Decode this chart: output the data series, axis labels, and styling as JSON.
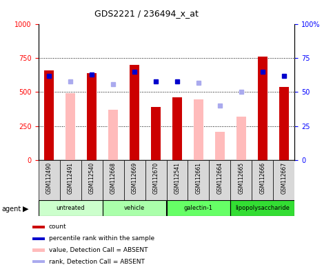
{
  "title": "GDS2221 / 236494_x_at",
  "samples": [
    "GSM112490",
    "GSM112491",
    "GSM112540",
    "GSM112668",
    "GSM112669",
    "GSM112670",
    "GSM112541",
    "GSM112661",
    "GSM112664",
    "GSM112665",
    "GSM112666",
    "GSM112667"
  ],
  "count_values": [
    660,
    null,
    640,
    null,
    700,
    390,
    460,
    null,
    null,
    null,
    760,
    540
  ],
  "absent_value_bars": [
    null,
    490,
    null,
    370,
    null,
    null,
    null,
    445,
    210,
    320,
    null,
    null
  ],
  "percentile_rank_present": [
    62,
    null,
    63,
    null,
    65,
    58,
    58,
    null,
    null,
    null,
    65,
    62
  ],
  "rank_absent": [
    null,
    58,
    null,
    56,
    null,
    null,
    null,
    57,
    40,
    50,
    null,
    null
  ],
  "ylim_left": [
    0,
    1000
  ],
  "ylim_right": [
    0,
    100
  ],
  "yticks_left": [
    0,
    250,
    500,
    750,
    1000
  ],
  "yticks_right": [
    0,
    25,
    50,
    75,
    100
  ],
  "count_color": "#cc0000",
  "absent_value_color": "#ffbbbb",
  "rank_present_color": "#0000cc",
  "rank_absent_color": "#aaaaee",
  "group_boundaries": [
    {
      "start": 0,
      "end": 2,
      "name": "untreated",
      "color": "#ccffcc"
    },
    {
      "start": 3,
      "end": 5,
      "name": "vehicle",
      "color": "#aaffaa"
    },
    {
      "start": 6,
      "end": 8,
      "name": "galectin-1",
      "color": "#66ff66"
    },
    {
      "start": 9,
      "end": 11,
      "name": "lipopolysaccharide",
      "color": "#33dd33"
    }
  ],
  "legend_items": [
    {
      "label": "count",
      "color": "#cc0000"
    },
    {
      "label": "percentile rank within the sample",
      "color": "#0000cc"
    },
    {
      "label": "value, Detection Call = ABSENT",
      "color": "#ffbbbb"
    },
    {
      "label": "rank, Detection Call = ABSENT",
      "color": "#aaaaee"
    }
  ]
}
